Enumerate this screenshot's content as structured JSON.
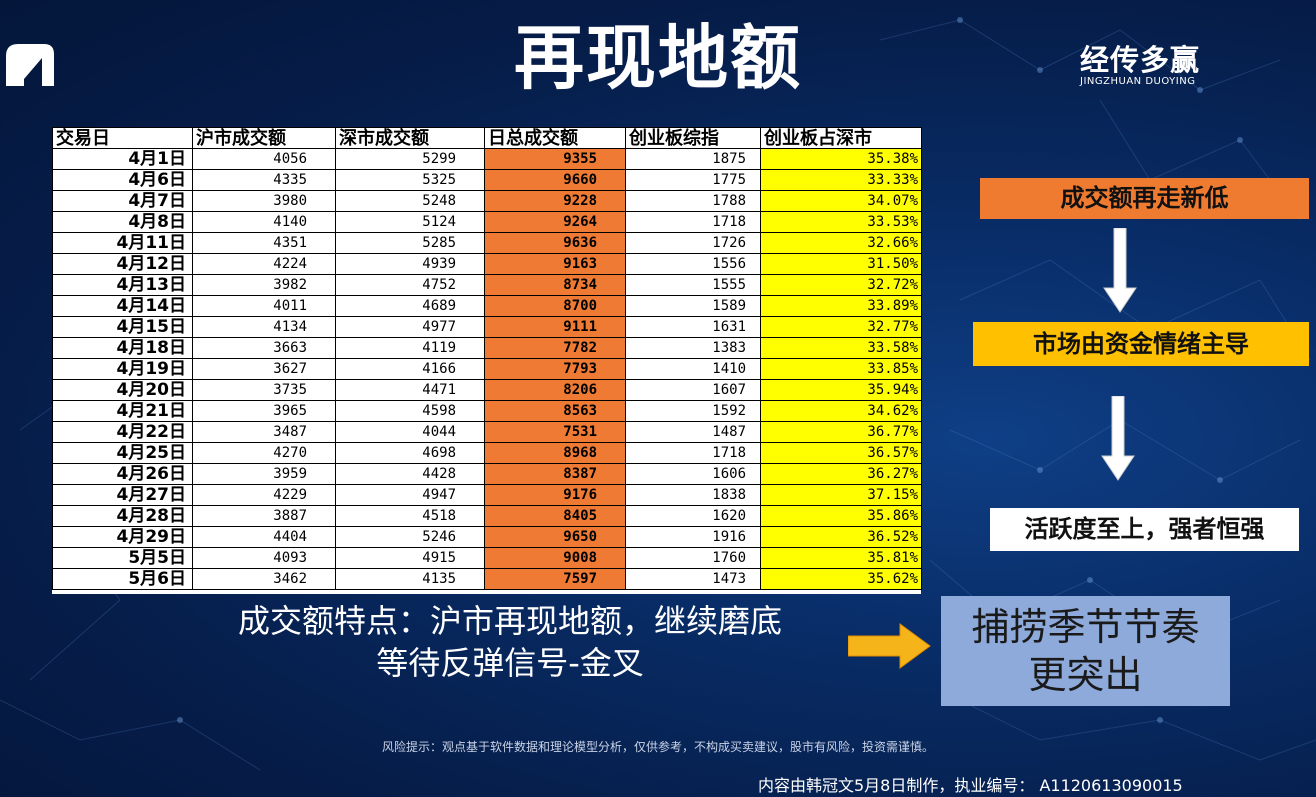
{
  "title": "再现地额",
  "brand": {
    "name": "经传多赢",
    "subtitle": "JINGZHUAN DUOYING"
  },
  "table": {
    "headers": [
      "交易日",
      "沪市成交额",
      "深市成交额",
      "日总成交额",
      "创业板综指",
      "创业板占深市"
    ],
    "rows": [
      [
        "4月1日",
        "4056",
        "5299",
        "9355",
        "1875",
        "35.38%"
      ],
      [
        "4月6日",
        "4335",
        "5325",
        "9660",
        "1775",
        "33.33%"
      ],
      [
        "4月7日",
        "3980",
        "5248",
        "9228",
        "1788",
        "34.07%"
      ],
      [
        "4月8日",
        "4140",
        "5124",
        "9264",
        "1718",
        "33.53%"
      ],
      [
        "4月11日",
        "4351",
        "5285",
        "9636",
        "1726",
        "32.66%"
      ],
      [
        "4月12日",
        "4224",
        "4939",
        "9163",
        "1556",
        "31.50%"
      ],
      [
        "4月13日",
        "3982",
        "4752",
        "8734",
        "1555",
        "32.72%"
      ],
      [
        "4月14日",
        "4011",
        "4689",
        "8700",
        "1589",
        "33.89%"
      ],
      [
        "4月15日",
        "4134",
        "4977",
        "9111",
        "1631",
        "32.77%"
      ],
      [
        "4月18日",
        "3663",
        "4119",
        "7782",
        "1383",
        "33.58%"
      ],
      [
        "4月19日",
        "3627",
        "4166",
        "7793",
        "1410",
        "33.85%"
      ],
      [
        "4月20日",
        "3735",
        "4471",
        "8206",
        "1607",
        "35.94%"
      ],
      [
        "4月21日",
        "3965",
        "4598",
        "8563",
        "1592",
        "34.62%"
      ],
      [
        "4月22日",
        "3487",
        "4044",
        "7531",
        "1487",
        "36.77%"
      ],
      [
        "4月25日",
        "4270",
        "4698",
        "8968",
        "1718",
        "36.57%"
      ],
      [
        "4月26日",
        "3959",
        "4428",
        "8387",
        "1606",
        "36.27%"
      ],
      [
        "4月27日",
        "4229",
        "4947",
        "9176",
        "1838",
        "37.15%"
      ],
      [
        "4月28日",
        "3887",
        "4518",
        "8405",
        "1620",
        "35.86%"
      ],
      [
        "4月29日",
        "4404",
        "5246",
        "9650",
        "1916",
        "36.52%"
      ],
      [
        "5月5日",
        "4093",
        "4915",
        "9008",
        "1760",
        "35.81%"
      ],
      [
        "5月6日",
        "3462",
        "4135",
        "7597",
        "1473",
        "35.62%"
      ]
    ]
  },
  "flow": [
    "成交额再走新低",
    "市场由资金情绪主导",
    "活跃度至上，强者恒强"
  ],
  "summary": {
    "line1": "成交额特点：沪市再现地额，继续磨底",
    "line2": "等待反弹信号-金叉"
  },
  "rhythm": {
    "line1": "捕捞季节节奏",
    "line2": "更突出"
  },
  "risk_note": "风险提示：观点基于软件数据和理论模型分析，仅供参考，不构成买卖建议，股市有风险，投资需谨慎。",
  "credit": "内容由韩冠文5月8日制作，执业编号： A1120613090015",
  "colors": {
    "total_col": "#ee7a33",
    "ratio_col": "#ffff00",
    "flow1": "#ef7b31",
    "flow2": "#ffc000",
    "rhythm_box": "#8eaadb"
  },
  "icons": [
    "logo-n-icon",
    "down-arrow-icon",
    "right-arrow-icon"
  ]
}
